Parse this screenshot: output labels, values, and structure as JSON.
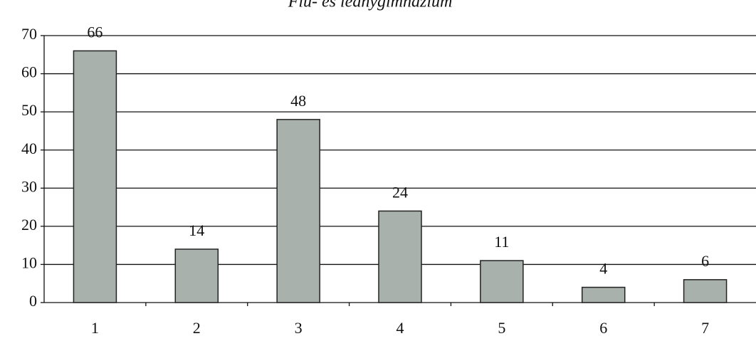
{
  "chart_data": {
    "type": "bar",
    "title": "Fiú- és leánygimnázium",
    "categories": [
      "1",
      "2",
      "3",
      "4",
      "5",
      "6",
      "7"
    ],
    "values": [
      66,
      14,
      48,
      24,
      11,
      4,
      6
    ],
    "color": "#a9b1ad",
    "ylim": [
      0,
      70
    ],
    "yticks": [
      0,
      10,
      20,
      30,
      40,
      50,
      60,
      70
    ],
    "grid": true
  }
}
